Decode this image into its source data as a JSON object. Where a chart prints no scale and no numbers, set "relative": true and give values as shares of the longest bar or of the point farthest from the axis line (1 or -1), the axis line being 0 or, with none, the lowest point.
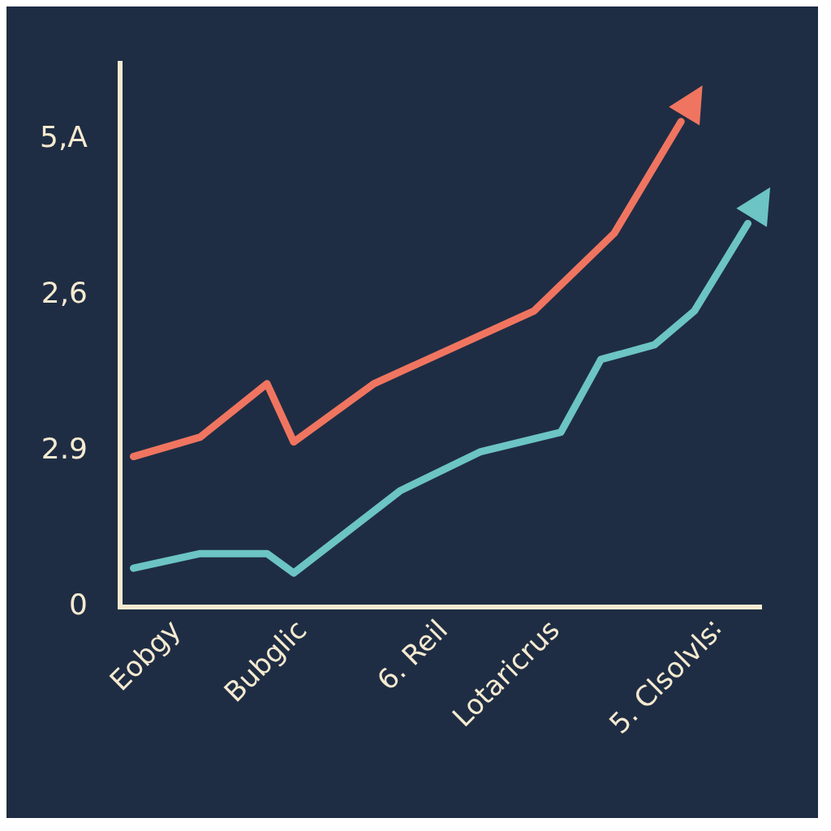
{
  "chart_data": {
    "type": "line",
    "relative": true,
    "categories": [
      null,
      null,
      "Eobgy",
      null,
      null,
      null,
      null,
      null,
      null,
      null,
      null,
      "Bubglic",
      null,
      null,
      null,
      null,
      null,
      null,
      null,
      null,
      null,
      null,
      "6. Reil",
      null,
      null,
      null,
      null,
      null,
      null,
      "Lotaricrus",
      null,
      null,
      null,
      null,
      null,
      null,
      null,
      null,
      null,
      null,
      null,
      "5. Clsolvls∶",
      null,
      null,
      null,
      null,
      null,
      null,
      null
    ],
    "series": [
      {
        "color": "#f07560",
        "values": [
          null,
          0.31,
          null,
          null,
          null,
          null,
          0.35,
          null,
          null,
          null,
          null,
          0.46,
          null,
          0.34,
          null,
          null,
          null,
          null,
          null,
          0.46,
          null,
          null,
          null,
          null,
          null,
          null,
          null,
          null,
          null,
          null,
          null,
          0.61,
          null,
          null,
          null,
          null,
          null,
          0.77,
          null,
          null,
          null,
          null,
          1,
          null,
          null,
          null,
          null,
          null,
          null
        ]
      },
      {
        "color": "#6cc4c4",
        "values": [
          null,
          0.08,
          null,
          null,
          null,
          null,
          0.11,
          null,
          null,
          null,
          null,
          0.11,
          null,
          0.07,
          null,
          null,
          null,
          null,
          null,
          null,
          null,
          0.24,
          null,
          null,
          null,
          null,
          null,
          0.32,
          null,
          null,
          null,
          null,
          null,
          0.36,
          null,
          null,
          0.51,
          null,
          null,
          null,
          0.54,
          null,
          null,
          0.61,
          null,
          null,
          null,
          0.79,
          null
        ]
      }
    ],
    "annotations": [
      "5,A",
      "2,6",
      "2.9",
      "0"
    ],
    "grid": false,
    "legend": false,
    "marker": "none",
    "line_style": "solid"
  }
}
